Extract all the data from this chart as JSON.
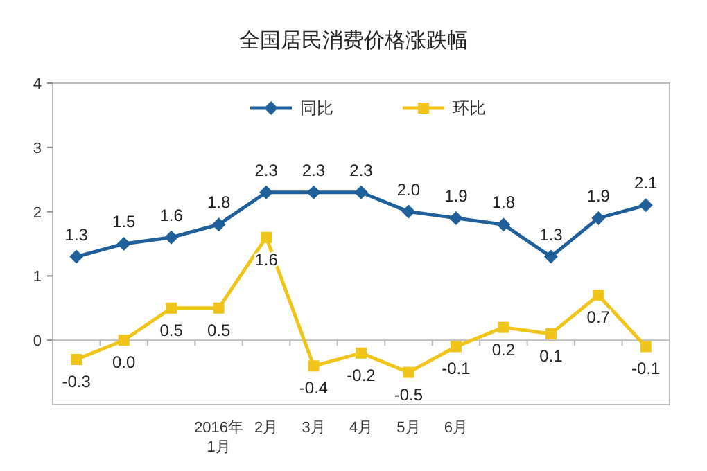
{
  "chart_data": {
    "type": "line",
    "title": "全国居民消费价格涨跌幅",
    "categories": [
      null,
      null,
      null,
      "2016年1月",
      "2月",
      "3月",
      "4月",
      "5月",
      "6月",
      null,
      null,
      null,
      null
    ],
    "series": [
      {
        "name": "同比",
        "color": "#1f5f9a",
        "marker": "diamond",
        "values": [
          1.3,
          1.5,
          1.6,
          1.8,
          2.3,
          2.3,
          2.3,
          2.0,
          1.9,
          1.8,
          1.3,
          1.9,
          2.1
        ],
        "value_labels": [
          "1.3",
          "1.5",
          "1.6",
          "1.8",
          "2.3",
          "2.3",
          "2.3",
          "2.0",
          "1.9",
          "1.8",
          "1.3",
          "1.9",
          "2.1"
        ]
      },
      {
        "name": "环比",
        "color": "#f0c419",
        "marker": "square",
        "values": [
          -0.3,
          0.0,
          0.5,
          0.5,
          1.6,
          -0.4,
          -0.2,
          -0.5,
          -0.1,
          0.2,
          0.1,
          0.7,
          -0.1
        ],
        "value_labels": [
          "-0.3",
          "0.0",
          "0.5",
          "0.5",
          "1.6",
          "-0.4",
          "-0.2",
          "-0.5",
          "-0.1",
          "0.2",
          "0.1",
          "0.7",
          "-0.1"
        ]
      }
    ],
    "ylim": [
      -1,
      4
    ],
    "yticks": [
      0,
      1,
      2,
      3,
      4
    ],
    "legend": "top"
  }
}
